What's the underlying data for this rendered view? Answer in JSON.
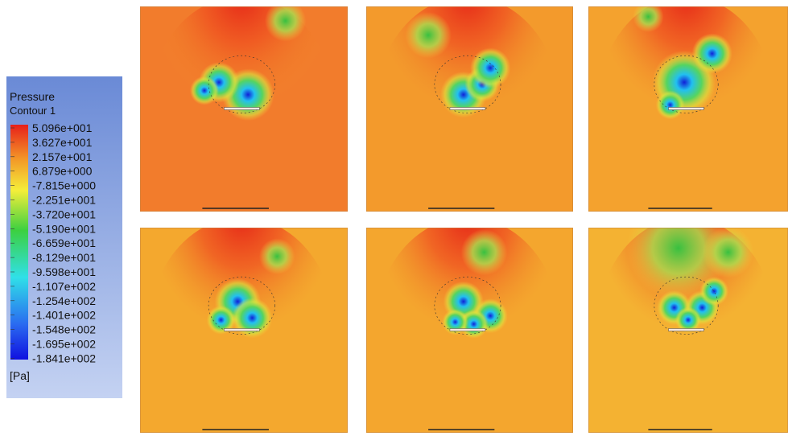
{
  "legend": {
    "title": "Pressure",
    "subtitle": "Contour 1",
    "labels": [
      "5.096e+001",
      "3.627e+001",
      "2.157e+001",
      "6.879e+000",
      "-7.815e+000",
      "-2.251e+001",
      "-3.720e+001",
      "-5.190e+001",
      "-6.659e+001",
      "-8.129e+001",
      "-9.598e+001",
      "-1.107e+002",
      "-1.254e+002",
      "-1.401e+002",
      "-1.548e+002",
      "-1.695e+002",
      "-1.841e+002"
    ],
    "unit": "[Pa]"
  }
}
